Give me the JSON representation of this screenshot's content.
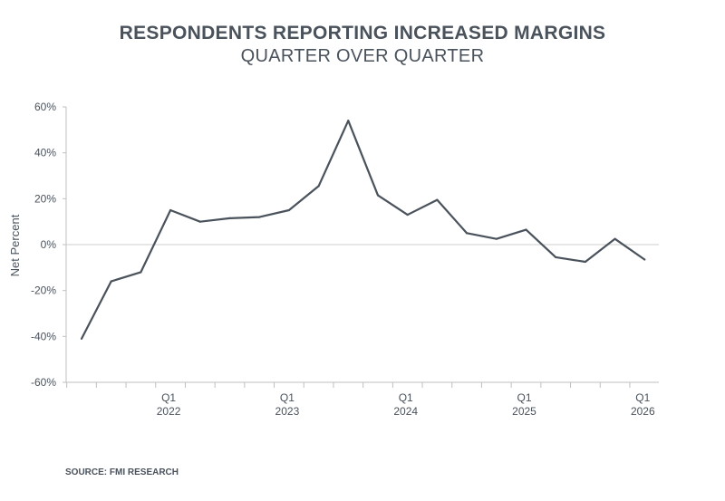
{
  "chart_data": {
    "type": "line",
    "title": "RESPONDENTS REPORTING INCREASED MARGINS",
    "subtitle": "QUARTER OVER QUARTER",
    "ylabel": "Net Percent",
    "xlabel": "",
    "ylim": [
      -60,
      60
    ],
    "y_ticks": [
      {
        "value": 60,
        "label": "60%"
      },
      {
        "value": 40,
        "label": "40%"
      },
      {
        "value": 20,
        "label": "20%"
      },
      {
        "value": 0,
        "label": "0%"
      },
      {
        "value": -20,
        "label": "-20%"
      },
      {
        "value": -40,
        "label": "-40%"
      },
      {
        "value": -60,
        "label": "-60%"
      }
    ],
    "x_tick_labels": [
      {
        "quarter": "Q1",
        "year": "2022",
        "index": 3
      },
      {
        "quarter": "Q1",
        "year": "2023",
        "index": 7
      },
      {
        "quarter": "Q1",
        "year": "2024",
        "index": 11
      },
      {
        "quarter": "Q1",
        "year": "2025",
        "index": 15
      },
      {
        "quarter": "Q1",
        "year": "2026",
        "index": 19
      }
    ],
    "x": [
      "Q2 2021",
      "Q3 2021",
      "Q4 2021",
      "Q1 2022",
      "Q2 2022",
      "Q3 2022",
      "Q4 2022",
      "Q1 2023",
      "Q2 2023",
      "Q3 2023",
      "Q4 2023",
      "Q1 2024",
      "Q2 2024",
      "Q3 2024",
      "Q4 2024",
      "Q1 2025",
      "Q2 2025",
      "Q3 2025",
      "Q4 2025",
      "Q1 2026"
    ],
    "series": [
      {
        "values": [
          -41,
          -16,
          -12,
          15,
          10,
          11.5,
          12,
          15,
          25.5,
          54,
          21.5,
          13,
          19.5,
          5,
          2.5,
          6.5,
          -5.5,
          -7.5,
          2.5,
          -6.5
        ]
      }
    ],
    "zero_line": true,
    "grid": false,
    "line_color": "#4a525c",
    "zero_line_color": "#cfcfcf"
  },
  "source": "SOURCE: FMI RESEARCH"
}
